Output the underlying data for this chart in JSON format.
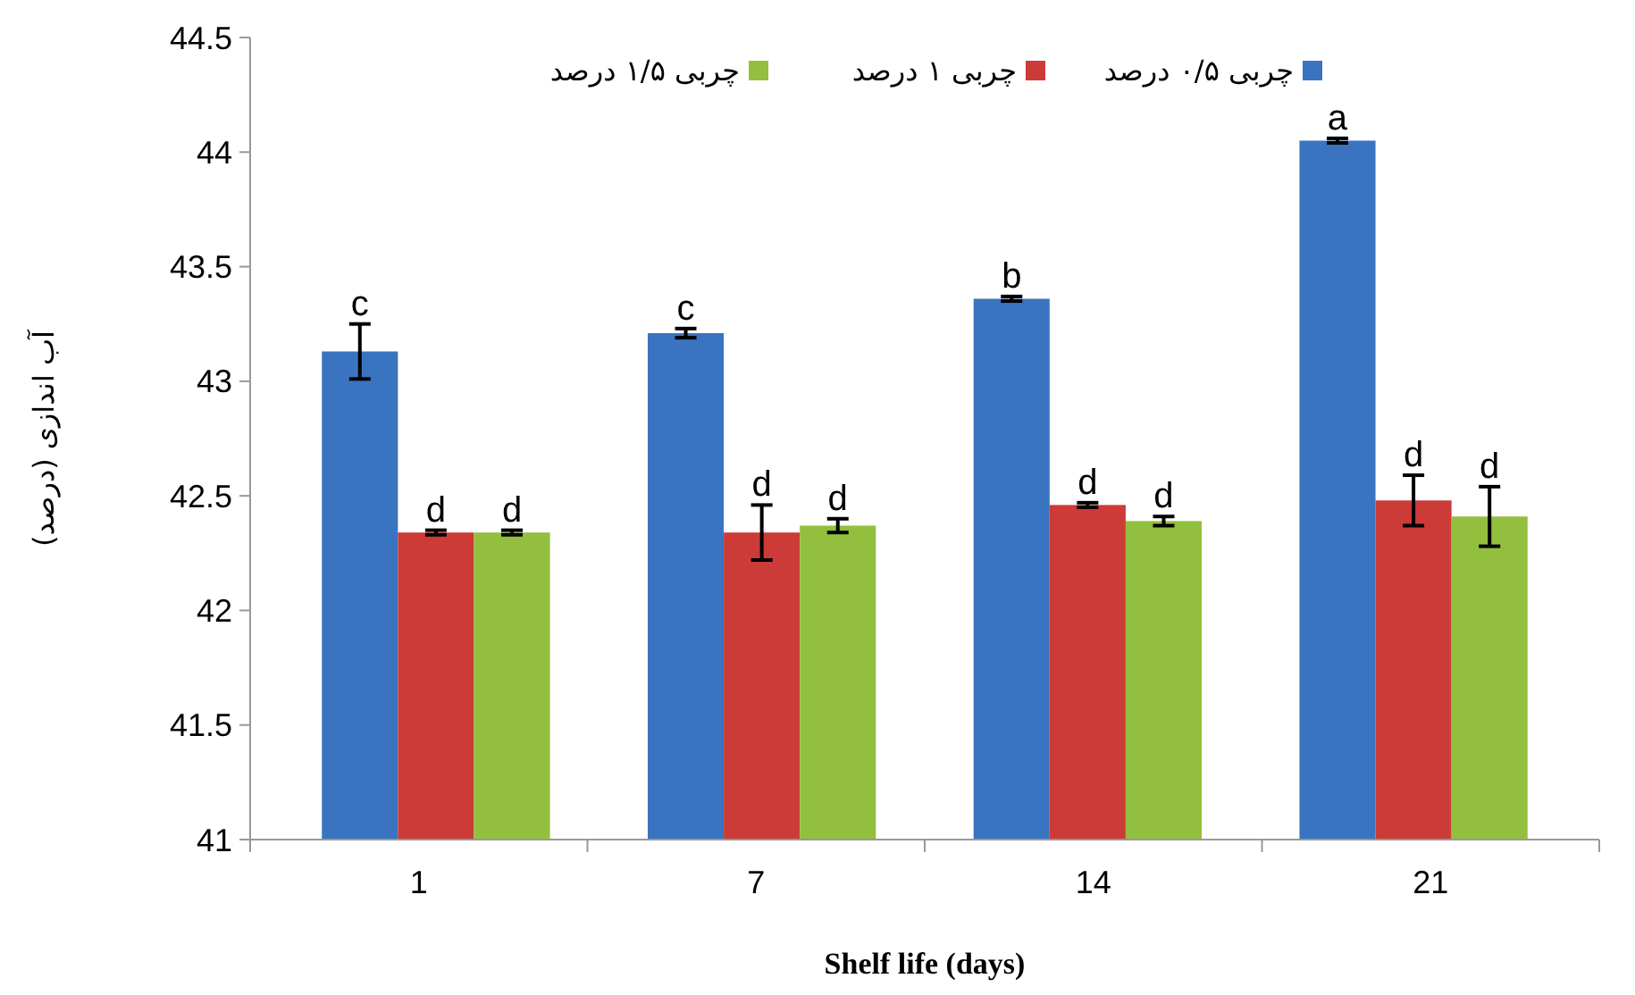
{
  "chart_data": {
    "type": "bar",
    "xlabel": "Shelf life (days)",
    "ylabel": "آب اندازی (درصد)",
    "categories": [
      "1",
      "7",
      "14",
      "21"
    ],
    "series": [
      {
        "name": "چربی ۰/۵ درصد",
        "color": "#3a74c0",
        "values": [
          43.13,
          43.21,
          43.36,
          44.05
        ],
        "errors": [
          0.12,
          0.02,
          0.01,
          0.01
        ],
        "value_labels": [
          "c",
          "c",
          "b",
          "a"
        ]
      },
      {
        "name": "چربی ۱ درصد",
        "color": "#cc3b37",
        "values": [
          42.34,
          42.34,
          42.46,
          42.48
        ],
        "errors": [
          0.01,
          0.12,
          0.01,
          0.11
        ],
        "value_labels": [
          "d",
          "d",
          "d",
          "d"
        ]
      },
      {
        "name": "چربی ۱/۵ درصد",
        "color": "#93bf3e",
        "values": [
          42.34,
          42.37,
          42.39,
          42.41
        ],
        "errors": [
          0.01,
          0.03,
          0.02,
          0.13
        ],
        "value_labels": [
          "d",
          "d",
          "d",
          "d"
        ]
      }
    ],
    "ylim": [
      41,
      44.5
    ],
    "yticks": [
      41,
      41.5,
      42,
      42.5,
      43,
      43.5,
      44,
      44.5
    ],
    "grid": false,
    "legend": "top"
  }
}
